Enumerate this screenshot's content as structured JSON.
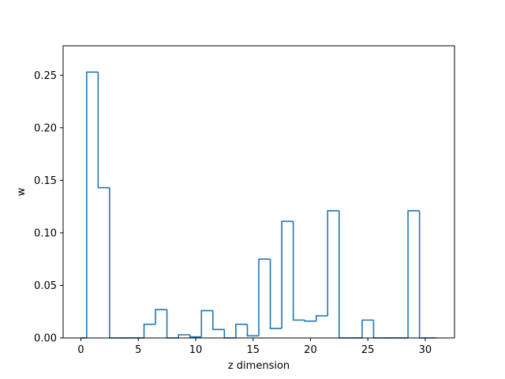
{
  "chart_data": {
    "type": "line",
    "style": "step-histogram",
    "title": "",
    "xlabel": "z dimension",
    "ylabel": "w",
    "xlim": [
      -1.55,
      32.55
    ],
    "ylim": [
      0,
      0.278
    ],
    "xticks": [
      0,
      5,
      10,
      15,
      20,
      25,
      30
    ],
    "xtick_labels": [
      "0",
      "5",
      "10",
      "15",
      "20",
      "25",
      "30"
    ],
    "yticks": [
      0,
      0.05,
      0.1,
      0.15,
      0.2,
      0.25
    ],
    "ytick_labels": [
      "0.00",
      "0.05",
      "0.10",
      "0.15",
      "0.20",
      "0.25"
    ],
    "grid": false,
    "legend": "none",
    "color": "#1f77b4",
    "bins": [
      {
        "x0": 0,
        "x1": 0.5,
        "value": 0
      },
      {
        "x0": 0.5,
        "x1": 1.5,
        "value": 0.253
      },
      {
        "x0": 1.5,
        "x1": 2.5,
        "value": 0.143
      },
      {
        "x0": 2.5,
        "x1": 3.5,
        "value": 0
      },
      {
        "x0": 3.5,
        "x1": 4.5,
        "value": 0
      },
      {
        "x0": 4.5,
        "x1": 5.5,
        "value": 0
      },
      {
        "x0": 5.5,
        "x1": 6.5,
        "value": 0.013
      },
      {
        "x0": 6.5,
        "x1": 7.5,
        "value": 0.027
      },
      {
        "x0": 7.5,
        "x1": 8.5,
        "value": 0
      },
      {
        "x0": 8.5,
        "x1": 9.5,
        "value": 0.003
      },
      {
        "x0": 9.5,
        "x1": 10.5,
        "value": 0.001
      },
      {
        "x0": 10.5,
        "x1": 11.5,
        "value": 0.026
      },
      {
        "x0": 11.5,
        "x1": 12.5,
        "value": 0.008
      },
      {
        "x0": 12.5,
        "x1": 13.5,
        "value": 0
      },
      {
        "x0": 13.5,
        "x1": 14.5,
        "value": 0.013
      },
      {
        "x0": 14.5,
        "x1": 15.5,
        "value": 0.002
      },
      {
        "x0": 15.5,
        "x1": 16.5,
        "value": 0.075
      },
      {
        "x0": 16.5,
        "x1": 17.5,
        "value": 0.009
      },
      {
        "x0": 17.5,
        "x1": 18.5,
        "value": 0.111
      },
      {
        "x0": 18.5,
        "x1": 19.5,
        "value": 0.017
      },
      {
        "x0": 19.5,
        "x1": 20.5,
        "value": 0.016
      },
      {
        "x0": 20.5,
        "x1": 21.5,
        "value": 0.021
      },
      {
        "x0": 21.5,
        "x1": 22.5,
        "value": 0.121
      },
      {
        "x0": 22.5,
        "x1": 23.5,
        "value": 0
      },
      {
        "x0": 23.5,
        "x1": 24.5,
        "value": 0
      },
      {
        "x0": 24.5,
        "x1": 25.5,
        "value": 0.017
      },
      {
        "x0": 25.5,
        "x1": 26.5,
        "value": 0
      },
      {
        "x0": 26.5,
        "x1": 27.5,
        "value": 0
      },
      {
        "x0": 27.5,
        "x1": 28.5,
        "value": 0
      },
      {
        "x0": 28.5,
        "x1": 29.5,
        "value": 0.121
      },
      {
        "x0": 29.5,
        "x1": 31,
        "value": 0
      }
    ]
  }
}
